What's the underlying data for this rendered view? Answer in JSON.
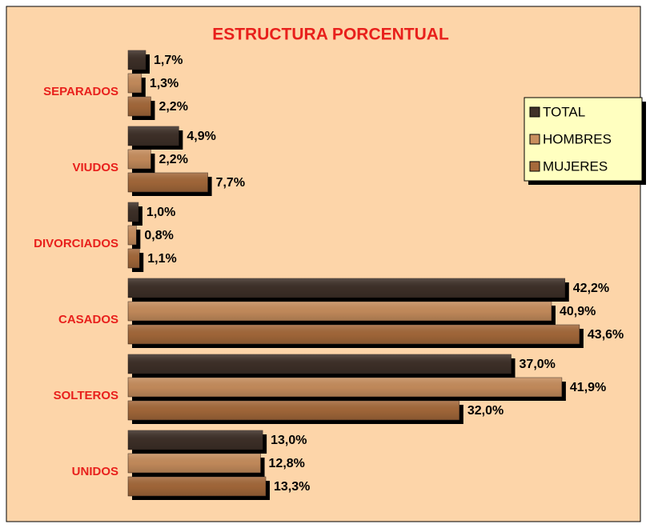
{
  "chart_data": {
    "type": "barh",
    "title": "ESTRUCTURA PORCENTUAL",
    "categories": [
      "SEPARADOS",
      "VIUDOS",
      "DIVORCIADOS",
      "CASADOS",
      "SOLTEROS",
      "UNIDOS"
    ],
    "series": [
      {
        "name": "TOTAL",
        "color": "#3f3129",
        "values": [
          1.7,
          4.9,
          1.0,
          42.2,
          37.0,
          13.0
        ],
        "value_labels": [
          "1,7%",
          "4,9%",
          "1,0%",
          "42,2%",
          "37,0%",
          "13,0%"
        ]
      },
      {
        "name": "HOMBRES",
        "color": "#c98f5e",
        "values": [
          1.3,
          2.2,
          0.8,
          40.9,
          41.9,
          12.8
        ],
        "value_labels": [
          "1,3%",
          "2,2%",
          "0,8%",
          "40,9%",
          "41,9%",
          "12,8%"
        ]
      },
      {
        "name": "MUJERES",
        "color": "#a66a3b",
        "values": [
          2.2,
          7.7,
          1.1,
          43.6,
          32.0,
          13.3
        ],
        "value_labels": [
          "2,2%",
          "7,7%",
          "1,1%",
          "43,6%",
          "32,0%",
          "13,3%"
        ]
      }
    ],
    "xlim": [
      0,
      45
    ],
    "legend": "upper right"
  }
}
